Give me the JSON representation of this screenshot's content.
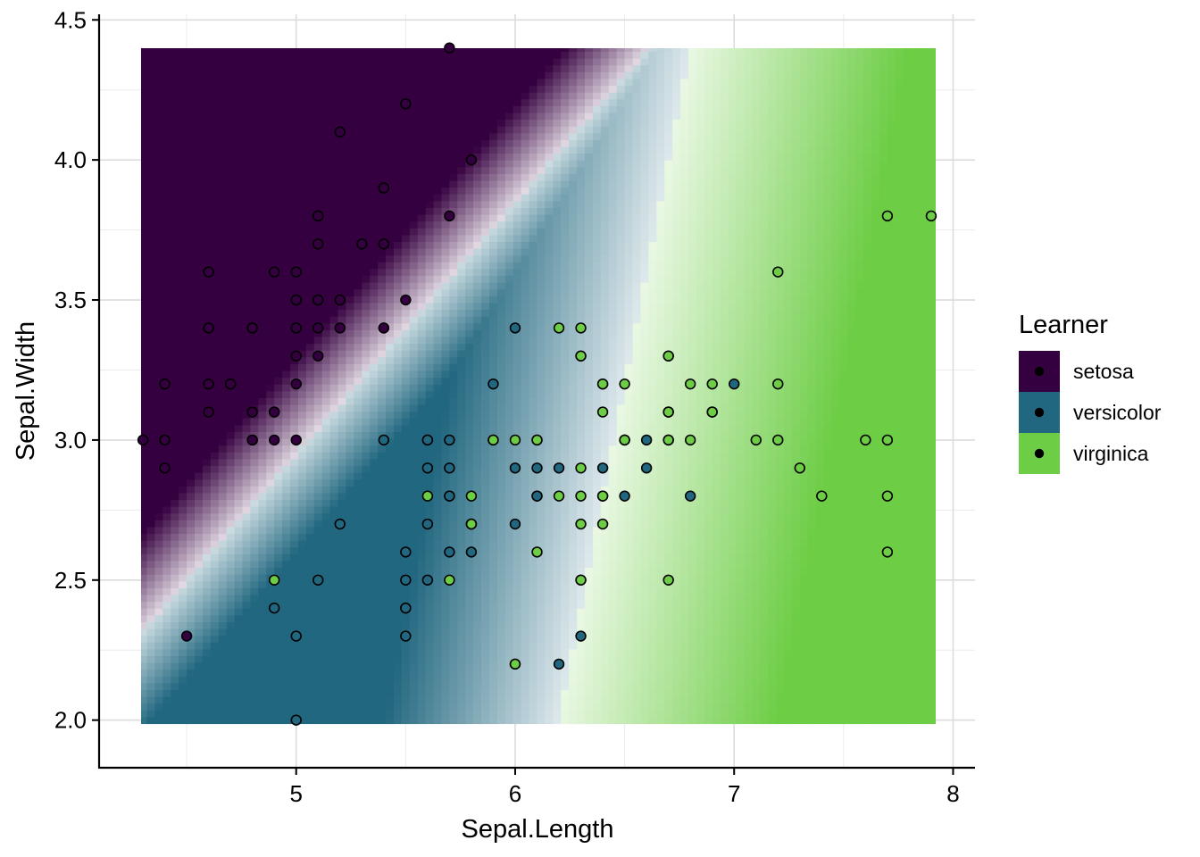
{
  "chart_data": {
    "type": "scatter",
    "subtype": "classification-decision-surface",
    "xlabel": "Sepal.Length",
    "ylabel": "Sepal.Width",
    "xlim": [
      4.1,
      8.1
    ],
    "ylim": [
      1.83,
      4.52
    ],
    "x_ticks": [
      5,
      6,
      7,
      8
    ],
    "x_tick_labels": [
      "5",
      "6",
      "7",
      "8"
    ],
    "y_ticks": [
      2.0,
      2.5,
      3.0,
      3.5,
      4.0,
      4.5
    ],
    "y_tick_labels": [
      "2.0",
      "2.5",
      "3.0",
      "3.5",
      "4.0",
      "4.5"
    ],
    "grid": true,
    "legend": {
      "title": "Learner",
      "placement": "right",
      "entries": [
        {
          "label": "setosa",
          "color": "#35003F"
        },
        {
          "label": "versicolor",
          "color": "#21677F"
        },
        {
          "label": "virginica",
          "color": "#6DCD45"
        }
      ]
    },
    "surface": {
      "x_range": [
        4.3,
        7.9
      ],
      "y_range": [
        2.0,
        4.4
      ],
      "classes": [
        "setosa",
        "versicolor",
        "virginica"
      ]
    },
    "series": [
      {
        "name": "setosa",
        "color": "#35003F",
        "points": [
          [
            5.1,
            3.5
          ],
          [
            4.9,
            3.0
          ],
          [
            4.7,
            3.2
          ],
          [
            4.6,
            3.1
          ],
          [
            5.0,
            3.6
          ],
          [
            5.4,
            3.9
          ],
          [
            4.6,
            3.4
          ],
          [
            5.0,
            3.4
          ],
          [
            4.4,
            2.9
          ],
          [
            4.9,
            3.1
          ],
          [
            5.4,
            3.7
          ],
          [
            4.8,
            3.4
          ],
          [
            4.8,
            3.0
          ],
          [
            4.3,
            3.0
          ],
          [
            5.8,
            4.0
          ],
          [
            5.7,
            4.4
          ],
          [
            5.4,
            3.9
          ],
          [
            5.1,
            3.5
          ],
          [
            5.7,
            3.8
          ],
          [
            5.1,
            3.8
          ],
          [
            5.4,
            3.4
          ],
          [
            5.1,
            3.7
          ],
          [
            4.6,
            3.6
          ],
          [
            5.1,
            3.3
          ],
          [
            4.8,
            3.4
          ],
          [
            5.0,
            3.0
          ],
          [
            5.0,
            3.4
          ],
          [
            5.2,
            3.5
          ],
          [
            5.2,
            3.4
          ],
          [
            4.7,
            3.2
          ],
          [
            4.8,
            3.1
          ],
          [
            5.4,
            3.4
          ],
          [
            5.2,
            4.1
          ],
          [
            5.5,
            4.2
          ],
          [
            4.9,
            3.1
          ],
          [
            5.0,
            3.2
          ],
          [
            5.5,
            3.5
          ],
          [
            4.9,
            3.6
          ],
          [
            4.4,
            3.0
          ],
          [
            5.1,
            3.4
          ],
          [
            5.0,
            3.5
          ],
          [
            4.5,
            2.3
          ],
          [
            4.4,
            3.2
          ],
          [
            5.0,
            3.5
          ],
          [
            5.1,
            3.8
          ],
          [
            4.8,
            3.0
          ],
          [
            5.1,
            3.8
          ],
          [
            4.6,
            3.2
          ],
          [
            5.3,
            3.7
          ],
          [
            5.0,
            3.3
          ]
        ]
      },
      {
        "name": "versicolor",
        "color": "#21677F",
        "points": [
          [
            7.0,
            3.2
          ],
          [
            6.4,
            3.2
          ],
          [
            6.9,
            3.1
          ],
          [
            5.5,
            2.3
          ],
          [
            6.5,
            2.8
          ],
          [
            5.7,
            2.8
          ],
          [
            6.3,
            3.3
          ],
          [
            4.9,
            2.4
          ],
          [
            6.6,
            2.9
          ],
          [
            5.2,
            2.7
          ],
          [
            5.0,
            2.0
          ],
          [
            5.9,
            3.0
          ],
          [
            6.0,
            2.2
          ],
          [
            6.1,
            2.9
          ],
          [
            5.6,
            2.9
          ],
          [
            6.7,
            3.1
          ],
          [
            5.6,
            3.0
          ],
          [
            5.8,
            2.7
          ],
          [
            6.2,
            2.2
          ],
          [
            5.6,
            2.5
          ],
          [
            5.9,
            3.2
          ],
          [
            6.1,
            2.8
          ],
          [
            6.3,
            2.5
          ],
          [
            6.1,
            2.8
          ],
          [
            6.4,
            2.9
          ],
          [
            6.6,
            3.0
          ],
          [
            6.8,
            2.8
          ],
          [
            6.7,
            3.0
          ],
          [
            6.0,
            2.9
          ],
          [
            5.7,
            2.6
          ],
          [
            5.5,
            2.4
          ],
          [
            5.5,
            2.4
          ],
          [
            5.8,
            2.7
          ],
          [
            6.0,
            2.7
          ],
          [
            5.4,
            3.0
          ],
          [
            6.0,
            3.4
          ],
          [
            6.7,
            3.1
          ],
          [
            6.3,
            2.3
          ],
          [
            5.6,
            3.0
          ],
          [
            5.5,
            2.5
          ],
          [
            5.5,
            2.6
          ],
          [
            6.1,
            3.0
          ],
          [
            5.8,
            2.6
          ],
          [
            5.0,
            2.3
          ],
          [
            5.6,
            2.7
          ],
          [
            5.7,
            3.0
          ],
          [
            5.7,
            2.9
          ],
          [
            6.2,
            2.9
          ],
          [
            5.1,
            2.5
          ],
          [
            5.7,
            2.8
          ]
        ]
      },
      {
        "name": "virginica",
        "color": "#6DCD45",
        "points": [
          [
            6.3,
            3.3
          ],
          [
            5.8,
            2.7
          ],
          [
            7.1,
            3.0
          ],
          [
            6.3,
            2.9
          ],
          [
            6.5,
            3.0
          ],
          [
            7.6,
            3.0
          ],
          [
            4.9,
            2.5
          ],
          [
            7.3,
            2.9
          ],
          [
            6.7,
            2.5
          ],
          [
            7.2,
            3.6
          ],
          [
            6.5,
            3.2
          ],
          [
            6.4,
            2.7
          ],
          [
            6.8,
            3.0
          ],
          [
            5.7,
            2.5
          ],
          [
            5.8,
            2.8
          ],
          [
            6.4,
            3.2
          ],
          [
            6.5,
            3.0
          ],
          [
            7.7,
            3.8
          ],
          [
            7.7,
            2.6
          ],
          [
            6.0,
            2.2
          ],
          [
            6.9,
            3.2
          ],
          [
            5.6,
            2.8
          ],
          [
            7.7,
            2.8
          ],
          [
            6.3,
            2.7
          ],
          [
            6.7,
            3.3
          ],
          [
            7.2,
            3.2
          ],
          [
            6.2,
            2.8
          ],
          [
            6.1,
            3.0
          ],
          [
            6.4,
            2.8
          ],
          [
            7.2,
            3.0
          ],
          [
            7.4,
            2.8
          ],
          [
            7.9,
            3.8
          ],
          [
            6.4,
            2.8
          ],
          [
            6.3,
            2.8
          ],
          [
            6.1,
            2.6
          ],
          [
            7.7,
            3.0
          ],
          [
            6.3,
            3.4
          ],
          [
            6.4,
            3.1
          ],
          [
            6.0,
            3.0
          ],
          [
            6.9,
            3.1
          ],
          [
            6.7,
            3.1
          ],
          [
            6.9,
            3.1
          ],
          [
            5.8,
            2.7
          ],
          [
            6.8,
            3.2
          ],
          [
            6.7,
            3.3
          ],
          [
            6.7,
            3.0
          ],
          [
            6.3,
            2.5
          ],
          [
            6.5,
            3.0
          ],
          [
            6.2,
            3.4
          ],
          [
            5.9,
            3.0
          ]
        ]
      }
    ]
  }
}
